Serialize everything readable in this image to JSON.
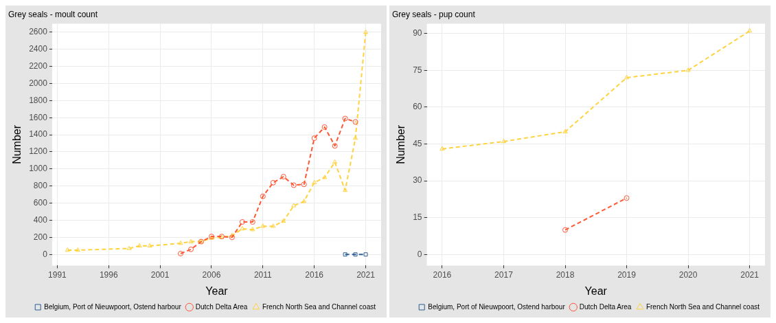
{
  "chart_data": [
    {
      "type": "line",
      "title": "Grey seals - moult count",
      "xlabel": "Year",
      "ylabel": "Number",
      "xlim": [
        1990.5,
        2022.5
      ],
      "xticks": [
        1991,
        1996,
        2001,
        2006,
        2011,
        2016,
        2021
      ],
      "ylim": [
        -130,
        2700
      ],
      "yticks": [
        0,
        200,
        400,
        600,
        800,
        1000,
        1200,
        1400,
        1600,
        1800,
        2000,
        2200,
        2400,
        2600
      ],
      "grid": true,
      "legend": "bottom",
      "line_style": "dashed",
      "series": [
        {
          "name": "Belgium, Port of Nieuwpoort, Ostend harbour",
          "color": "#2b5d92",
          "marker": "square",
          "x": [
            2019,
            2020,
            2021
          ],
          "values": [
            0,
            0,
            0
          ]
        },
        {
          "name": "Dutch Delta Area",
          "color": "#ff5733",
          "marker": "circle",
          "x": [
            2003,
            2004,
            2005,
            2006,
            2007,
            2008,
            2009,
            2010,
            2011,
            2012,
            2013,
            2014,
            2015,
            2016,
            2017,
            2018,
            2019,
            2020
          ],
          "values": [
            10,
            60,
            150,
            210,
            210,
            200,
            380,
            380,
            680,
            840,
            910,
            810,
            820,
            1360,
            1490,
            1270,
            1590,
            1550
          ]
        },
        {
          "name": "French North Sea and Channel coast",
          "color": "#ffd23f",
          "marker": "triangle",
          "x": [
            1992,
            1993,
            1998,
            1999,
            2000,
            2003,
            2004,
            2005,
            2006,
            2007,
            2008,
            2009,
            2010,
            2011,
            2012,
            2013,
            2014,
            2015,
            2016,
            2017,
            2018,
            2019,
            2020,
            2021
          ],
          "values": [
            50,
            50,
            70,
            100,
            100,
            130,
            150,
            150,
            190,
            200,
            220,
            300,
            290,
            330,
            330,
            390,
            570,
            620,
            840,
            900,
            1080,
            750,
            1360,
            2600
          ]
        }
      ]
    },
    {
      "type": "line",
      "title": "Grey seals - pup count",
      "xlabel": "Year",
      "ylabel": "Number",
      "xlim": [
        2015.75,
        2021.25
      ],
      "xticks": [
        2016,
        2017,
        2018,
        2019,
        2020,
        2021
      ],
      "ylim": [
        -4.5,
        94
      ],
      "yticks": [
        0,
        15,
        30,
        45,
        60,
        75,
        90
      ],
      "grid": true,
      "legend": "bottom",
      "line_style": "dashed",
      "series": [
        {
          "name": "Belgium, Port of Nieuwpoort, Ostend harbour",
          "color": "#2b5d92",
          "marker": "square"
        },
        {
          "name": "Dutch Delta Area",
          "color": "#ff5733",
          "marker": "circle",
          "x": [
            2018,
            2019
          ],
          "values": [
            10,
            23
          ]
        },
        {
          "name": "French North Sea and Channel coast",
          "color": "#ffd23f",
          "marker": "triangle",
          "x": [
            2016,
            2017,
            2018,
            2019,
            2020,
            2021
          ],
          "values": [
            43,
            46,
            50,
            72,
            75,
            91
          ]
        }
      ]
    }
  ]
}
